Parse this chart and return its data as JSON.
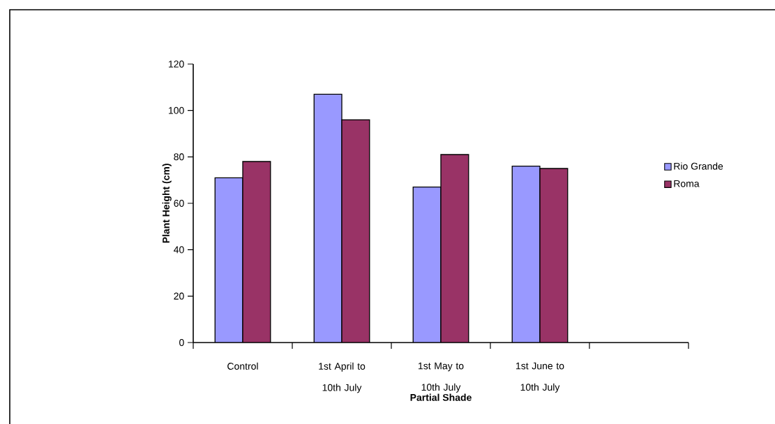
{
  "chart_data": {
    "type": "bar",
    "xlabel": "Partial Shade",
    "ylabel": "Plant Height (cm)",
    "categories": [
      "Control",
      "1st April to 10th July",
      "1st May to 10th July",
      "1st June to 10th July",
      null
    ],
    "series": [
      {
        "name": "Rio Grande",
        "color": "#9999ff",
        "values": [
          71,
          107,
          67,
          76,
          null
        ]
      },
      {
        "name": "Roma",
        "color": "#993366",
        "values": [
          78,
          96,
          81,
          75,
          null
        ]
      }
    ],
    "ylim": [
      0,
      120
    ],
    "yticks": [
      0,
      20,
      40,
      60,
      80,
      100,
      120
    ],
    "grid": false,
    "legend": "right"
  }
}
